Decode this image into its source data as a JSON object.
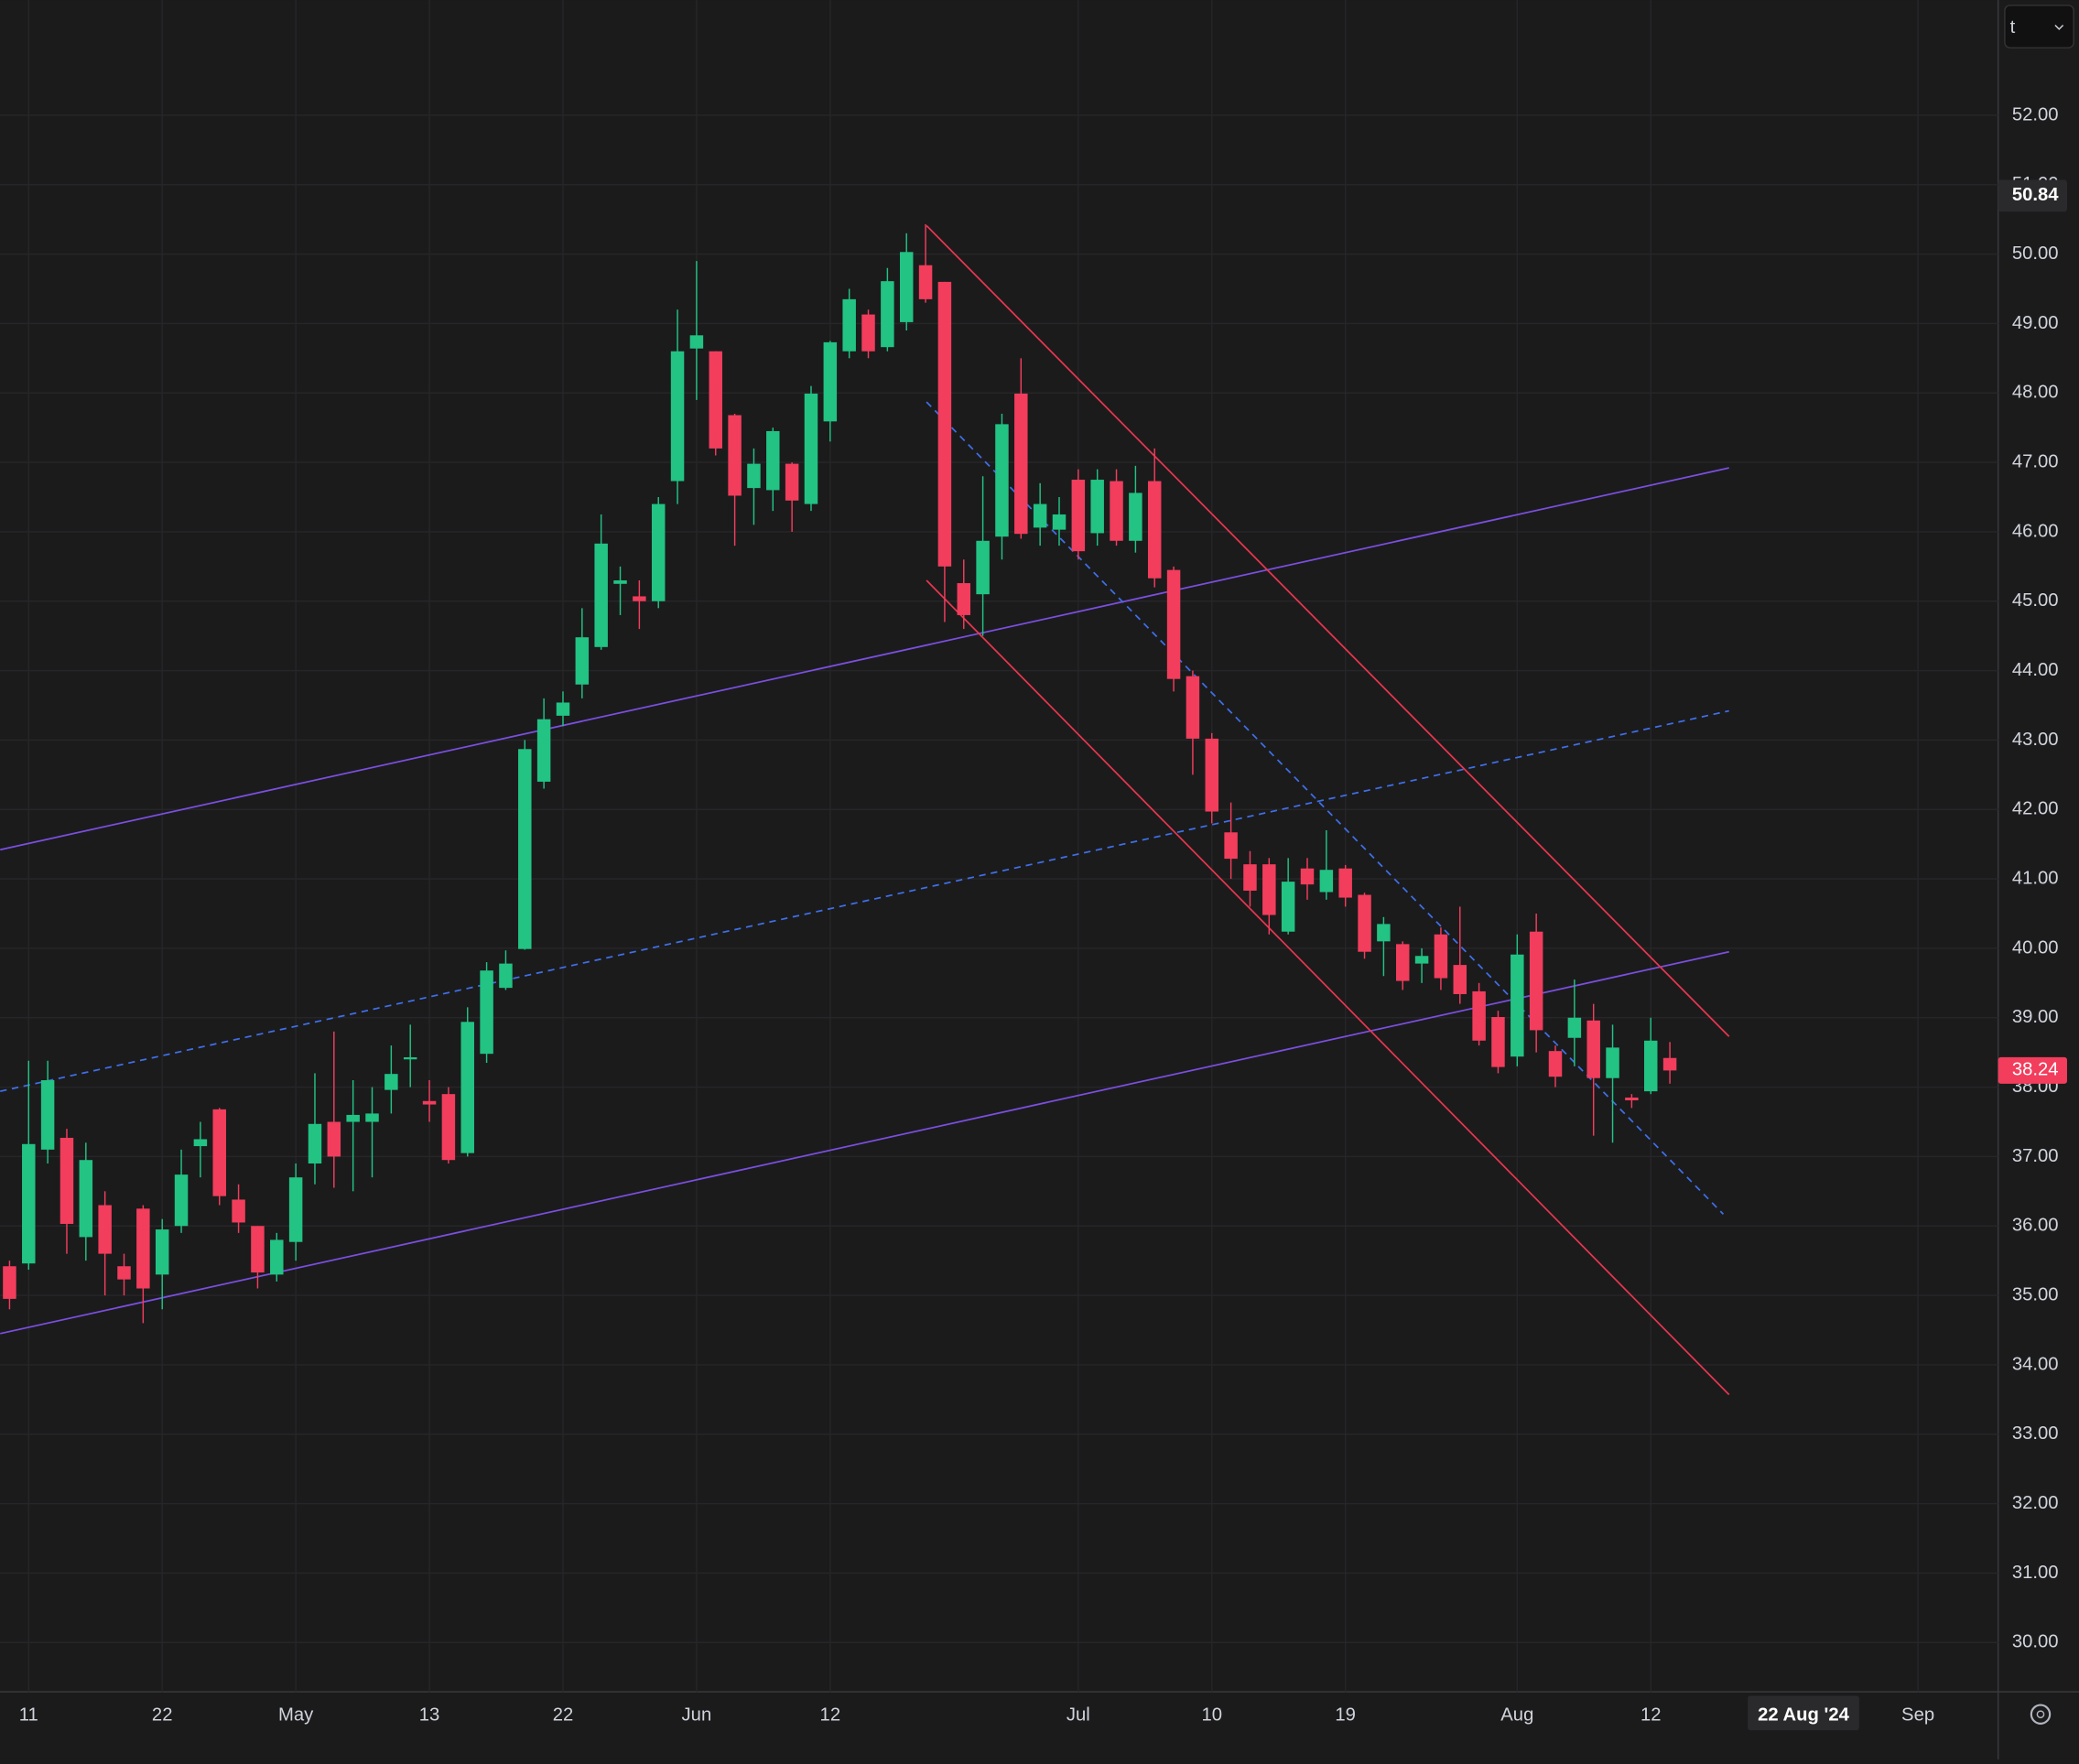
{
  "chart_data": {
    "type": "candlestick",
    "up_color": "#22c383",
    "down_color": "#f23d5c",
    "grid": true,
    "xlim": [
      -0.5,
      104.2
    ],
    "ylim": [
      29.29,
      53.66
    ],
    "xticks": [
      {
        "value": 1,
        "label": "11"
      },
      {
        "value": 8,
        "label": "22"
      },
      {
        "value": 15,
        "label": "May"
      },
      {
        "value": 22,
        "label": "13"
      },
      {
        "value": 29,
        "label": "22"
      },
      {
        "value": 36,
        "label": "Jun"
      },
      {
        "value": 43,
        "label": "12"
      },
      {
        "value": 56,
        "label": "Jul"
      },
      {
        "value": 63,
        "label": "10"
      },
      {
        "value": 70,
        "label": "19"
      },
      {
        "value": 79,
        "label": "Aug"
      },
      {
        "value": 86,
        "label": "12"
      },
      {
        "value": 100,
        "label": "Sep"
      }
    ],
    "yticks": [
      {
        "value": 30,
        "label": "30.00"
      },
      {
        "value": 31,
        "label": "31.00"
      },
      {
        "value": 32,
        "label": "32.00"
      },
      {
        "value": 33,
        "label": "33.00"
      },
      {
        "value": 34,
        "label": "34.00"
      },
      {
        "value": 35,
        "label": "35.00"
      },
      {
        "value": 36,
        "label": "36.00"
      },
      {
        "value": 37,
        "label": "37.00"
      },
      {
        "value": 38,
        "label": "38.00"
      },
      {
        "value": 39,
        "label": "39.00"
      },
      {
        "value": 40,
        "label": "40.00"
      },
      {
        "value": 41,
        "label": "41.00"
      },
      {
        "value": 42,
        "label": "42.00"
      },
      {
        "value": 43,
        "label": "43.00"
      },
      {
        "value": 44,
        "label": "44.00"
      },
      {
        "value": 45,
        "label": "45.00"
      },
      {
        "value": 46,
        "label": "46.00"
      },
      {
        "value": 47,
        "label": "47.00"
      },
      {
        "value": 48,
        "label": "48.00"
      },
      {
        "value": 49,
        "label": "49.00"
      },
      {
        "value": 50,
        "label": "50.00"
      },
      {
        "value": 51,
        "label": "51.00"
      },
      {
        "value": 52,
        "label": "52.00"
      }
    ],
    "open": [
      35.42,
      35.46,
      37.1,
      37.27,
      35.84,
      36.3,
      35.42,
      36.25,
      35.3,
      36.0,
      37.15,
      37.68,
      36.38,
      36.0,
      35.3,
      35.77,
      36.9,
      37.5,
      37.5,
      37.5,
      37.96,
      38.4,
      37.8,
      37.9,
      37.05,
      38.48,
      39.43,
      39.99,
      42.4,
      43.35,
      43.8,
      44.34,
      45.25,
      45.07,
      45.0,
      46.73,
      48.64,
      48.6,
      47.68,
      46.63,
      46.6,
      46.98,
      46.4,
      47.59,
      48.6,
      49.13,
      48.66,
      49.02,
      49.84,
      49.6,
      45.26,
      45.1,
      45.93,
      47.99,
      46.06,
      46.03,
      46.75,
      45.98,
      46.73,
      45.87,
      46.73,
      45.45,
      43.92,
      43.02,
      41.67,
      41.21,
      41.21,
      40.24,
      41.15,
      40.81,
      41.15,
      40.77,
      40.1,
      40.06,
      39.78,
      40.2,
      39.76,
      39.38,
      39.01,
      38.44,
      40.24,
      38.52,
      38.71,
      38.96,
      38.13,
      37.85,
      37.94,
      38.42
    ],
    "high": [
      35.5,
      38.38,
      38.38,
      37.4,
      37.2,
      36.5,
      35.6,
      36.3,
      36.1,
      37.1,
      37.5,
      37.7,
      36.6,
      36.0,
      35.9,
      36.9,
      38.2,
      38.8,
      38.1,
      38.0,
      38.6,
      38.9,
      38.1,
      38.0,
      39.15,
      39.8,
      39.97,
      43.0,
      43.6,
      43.7,
      44.9,
      46.25,
      45.5,
      45.3,
      46.5,
      49.2,
      49.9,
      48.6,
      47.7,
      47.2,
      47.5,
      47.0,
      48.1,
      48.75,
      49.5,
      49.2,
      49.8,
      50.3,
      50.43,
      49.6,
      45.6,
      46.8,
      47.7,
      48.5,
      46.7,
      46.5,
      46.9,
      46.9,
      46.9,
      46.95,
      47.2,
      45.5,
      44.0,
      43.1,
      42.1,
      41.4,
      41.3,
      41.3,
      41.3,
      41.7,
      41.2,
      40.8,
      40.45,
      40.1,
      40.0,
      40.3,
      40.6,
      39.5,
      39.1,
      40.2,
      40.5,
      38.6,
      39.55,
      39.2,
      38.9,
      37.9,
      39.0,
      38.65
    ],
    "low": [
      34.8,
      35.37,
      36.9,
      35.6,
      35.5,
      35.0,
      35.0,
      34.6,
      34.8,
      35.9,
      36.7,
      36.3,
      35.9,
      35.1,
      35.2,
      35.5,
      36.6,
      36.55,
      36.5,
      36.7,
      37.62,
      38.0,
      37.5,
      36.9,
      37.0,
      38.35,
      39.4,
      39.98,
      42.3,
      43.2,
      43.6,
      44.3,
      44.8,
      44.6,
      44.9,
      46.4,
      47.9,
      47.1,
      45.8,
      46.1,
      46.3,
      46.0,
      46.3,
      47.3,
      48.5,
      48.5,
      48.6,
      48.9,
      49.3,
      44.7,
      44.6,
      44.5,
      45.6,
      45.9,
      45.8,
      45.8,
      45.6,
      45.8,
      45.8,
      45.7,
      45.2,
      43.7,
      42.5,
      41.8,
      41.0,
      40.6,
      40.2,
      40.2,
      40.7,
      40.7,
      40.6,
      39.85,
      39.6,
      39.4,
      39.5,
      39.4,
      39.2,
      38.6,
      38.2,
      38.3,
      38.5,
      38.0,
      38.3,
      37.3,
      37.2,
      37.7,
      37.9,
      38.05
    ],
    "close": [
      34.95,
      37.18,
      38.1,
      36.03,
      36.95,
      35.6,
      35.23,
      35.1,
      35.95,
      36.74,
      37.25,
      36.43,
      36.05,
      35.33,
      35.8,
      36.7,
      37.47,
      37.0,
      37.6,
      37.62,
      38.19,
      38.43,
      37.75,
      36.95,
      38.94,
      39.68,
      39.78,
      42.87,
      43.3,
      43.54,
      44.48,
      45.83,
      45.3,
      45.0,
      46.4,
      48.6,
      48.83,
      47.2,
      46.52,
      46.98,
      47.45,
      46.45,
      47.99,
      48.73,
      49.35,
      48.6,
      49.61,
      50.03,
      49.35,
      45.5,
      44.8,
      45.87,
      47.55,
      45.97,
      46.4,
      46.25,
      45.72,
      46.75,
      45.87,
      46.56,
      45.33,
      43.88,
      43.02,
      41.97,
      41.29,
      40.83,
      40.48,
      40.96,
      40.92,
      41.13,
      40.73,
      39.95,
      40.35,
      39.53,
      39.89,
      39.57,
      39.34,
      38.67,
      38.29,
      39.91,
      38.82,
      38.15,
      39.0,
      38.13,
      38.57,
      37.81,
      38.67,
      38.24
    ],
    "drawings": [
      {
        "color": "#7b4fe0",
        "dashed": false,
        "points": [
          [
            -0.49,
            41.42
          ],
          [
            90.1,
            46.92
          ]
        ]
      },
      {
        "color": "#7b4fe0",
        "dashed": false,
        "points": [
          [
            -0.49,
            34.45
          ],
          [
            90.1,
            39.95
          ]
        ]
      },
      {
        "color": "#3f6fe8",
        "dashed": true,
        "points": [
          [
            -0.49,
            37.94
          ],
          [
            90.1,
            43.42
          ]
        ]
      },
      {
        "color": "#e8364f",
        "dashed": false,
        "points": [
          [
            48.05,
            50.41
          ],
          [
            90.1,
            38.73
          ]
        ]
      },
      {
        "color": "#e8364f",
        "dashed": false,
        "points": [
          [
            48.05,
            45.3
          ],
          [
            90.1,
            33.57
          ]
        ]
      },
      {
        "color": "#3f6fe8",
        "dashed": true,
        "points": [
          [
            48.05,
            47.87
          ],
          [
            89.8,
            36.17
          ]
        ]
      }
    ],
    "crosshair": {
      "x": {
        "value": 94,
        "label": "22 Aug '24"
      },
      "y": 50.84
    }
  },
  "ui": {
    "top_right_label": "t"
  }
}
